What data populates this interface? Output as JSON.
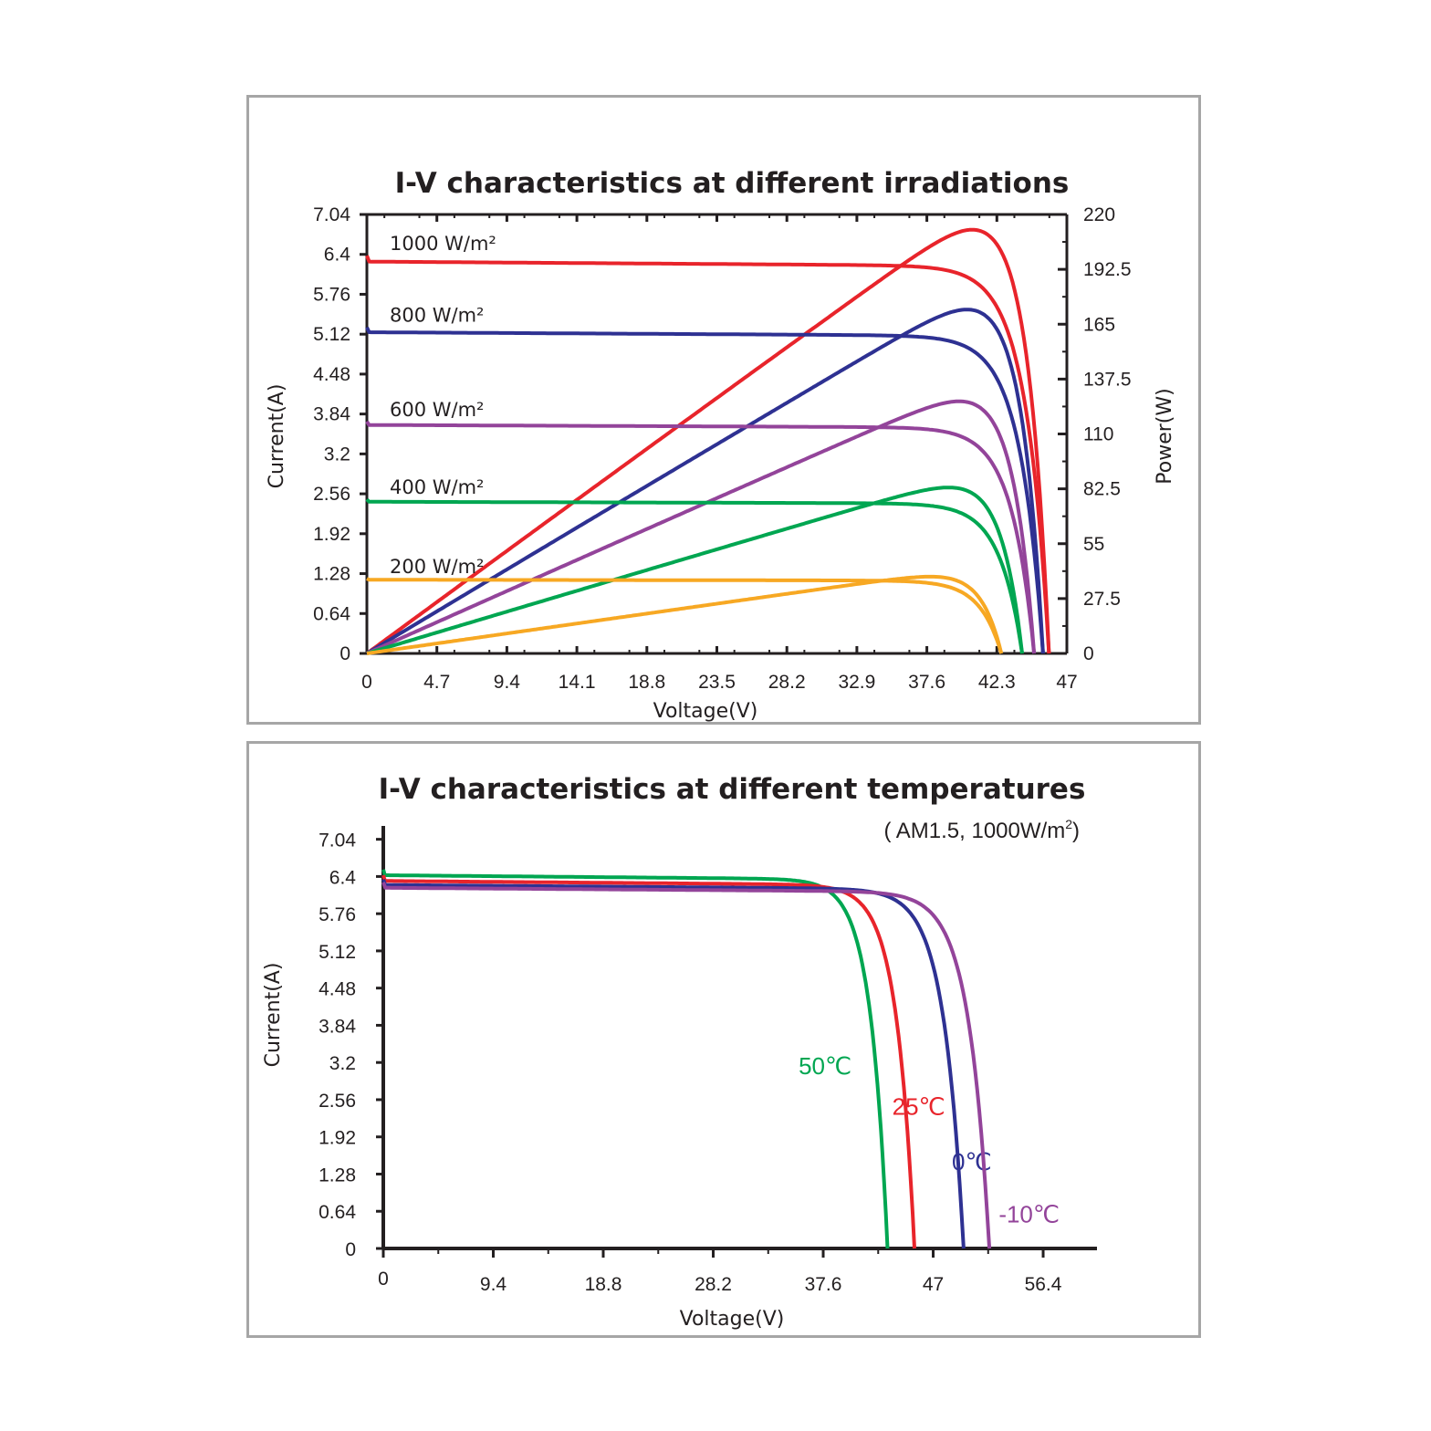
{
  "chart_data": [
    {
      "type": "line",
      "title": "I-V characteristics at different irradiations",
      "xlabel": "Voltage(V)",
      "ylabel": "Current(A)",
      "y2label": "Power(W)",
      "xlim": [
        0,
        47
      ],
      "ylim": [
        0,
        7.04
      ],
      "y2lim": [
        0,
        220
      ],
      "x_ticks": [
        "0",
        "4.7",
        "9.4",
        "14.1",
        "18.8",
        "23.5",
        "28.2",
        "32.9",
        "37.6",
        "42.3",
        "47"
      ],
      "y_ticks": [
        "0",
        "0.64",
        "1.28",
        "1.92",
        "2.56",
        "3.2",
        "3.84",
        "4.48",
        "5.12",
        "5.76",
        "6.4",
        "7.04"
      ],
      "y2_ticks": [
        "0",
        "27.5",
        "55",
        "82.5",
        "110",
        "137.5",
        "165",
        "192.5",
        "220"
      ],
      "series": [
        {
          "name": "1000 W/m²",
          "color": "#e8242b",
          "isc": 6.38,
          "voc": 45.8,
          "vmp": 37.6,
          "pmax": 203
        },
        {
          "name": "800 W/m²",
          "color": "#2e3192",
          "isc": 5.23,
          "voc": 45.4,
          "vmp": 37.6,
          "pmax": 166
        },
        {
          "name": "600 W/m²",
          "color": "#93449a",
          "isc": 3.72,
          "voc": 44.8,
          "vmp": 37.6,
          "pmax": 123
        },
        {
          "name": "400 W/m²",
          "color": "#00a651",
          "isc": 2.47,
          "voc": 44.0,
          "vmp": 37.6,
          "pmax": 82
        },
        {
          "name": "200 W/m²",
          "color": "#f7a823",
          "isc": 1.2,
          "voc": 42.6,
          "vmp": 36.5,
          "pmax": 38
        }
      ]
    },
    {
      "type": "line",
      "title": "I-V characteristics at different temperatures",
      "subtitle_pre": "( AM1.5,  1000W/m",
      "subtitle_sup": "2",
      "subtitle_post": ")",
      "xlabel": "Voltage(V)",
      "ylabel": "Current(A)",
      "xlim": [
        0,
        61
      ],
      "ylim": [
        0,
        7.04
      ],
      "x_ticks": [
        "0",
        "9.4",
        "18.8",
        "28.2",
        "37.6",
        "47",
        "56.4"
      ],
      "y_ticks": [
        "0",
        "0.64",
        "1.28",
        "1.92",
        "2.56",
        "3.2",
        "3.84",
        "4.48",
        "5.12",
        "5.76",
        "6.4",
        "7.04"
      ],
      "series": [
        {
          "name": "50℃",
          "color": "#00a651",
          "isc": 6.52,
          "voc": 43.1
        },
        {
          "name": "25℃",
          "color": "#e8242b",
          "isc": 6.42,
          "voc": 45.4
        },
        {
          "name": "0℃",
          "color": "#2e3192",
          "isc": 6.35,
          "voc": 49.6
        },
        {
          "name": "-10℃",
          "color": "#93449a",
          "isc": 6.3,
          "voc": 51.8
        }
      ]
    }
  ]
}
